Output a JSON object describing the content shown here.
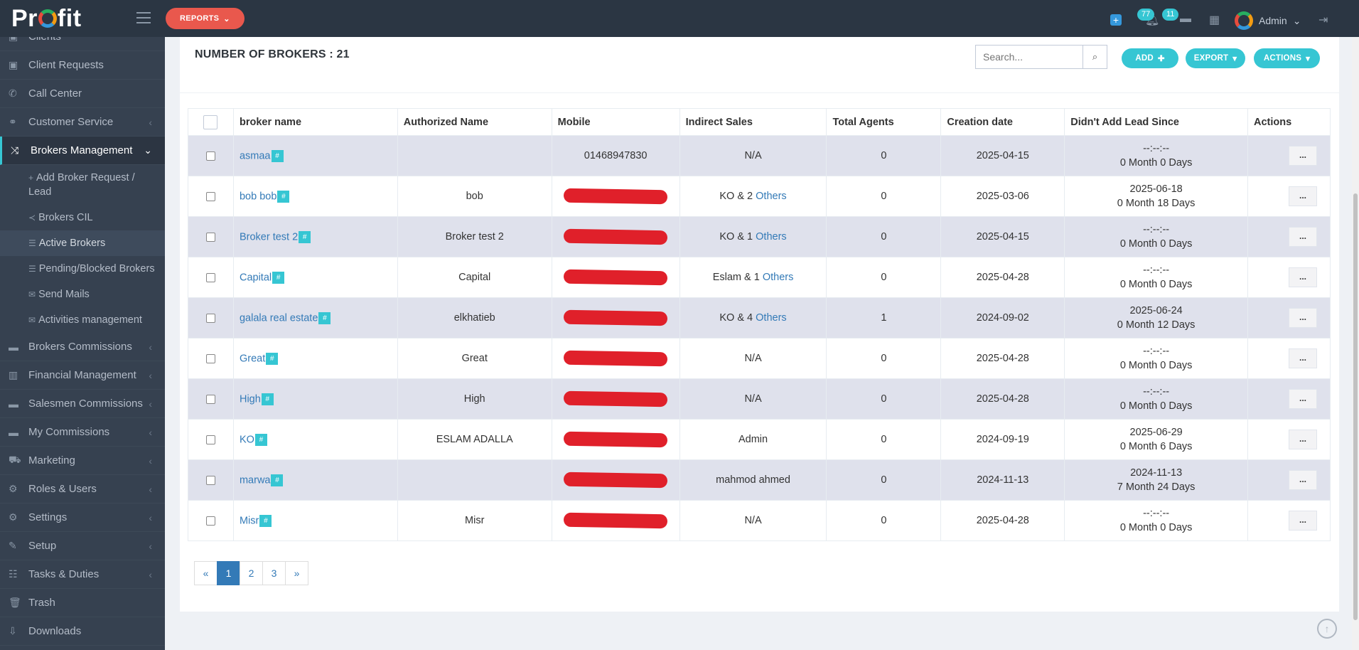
{
  "topbar": {
    "logo": "Profit",
    "reports_label": "REPORTS",
    "notifications_count": "77",
    "messages_count": "11",
    "user_name": "Admin"
  },
  "sidebar": {
    "items_top": [
      {
        "label": "Clients",
        "icon": "user-icon"
      },
      {
        "label": "Client Requests",
        "icon": "request-icon"
      },
      {
        "label": "Call Center",
        "icon": "phone-icon"
      },
      {
        "label": "Customer Service",
        "icon": "handshake-icon"
      },
      {
        "label": "Brokers Management",
        "icon": "shuffle-icon"
      }
    ],
    "sub_items": [
      {
        "label": "Add Broker Request / Lead",
        "icon": "plus-icon"
      },
      {
        "label": "Brokers CIL",
        "icon": "share-icon"
      },
      {
        "label": "Active Brokers",
        "icon": "list-icon"
      },
      {
        "label": "Pending/Blocked Brokers",
        "icon": "list-icon"
      },
      {
        "label": "Send Mails",
        "icon": "mail-icon"
      },
      {
        "label": "Activities management",
        "icon": "mail-icon"
      }
    ],
    "items_bottom": [
      {
        "label": "Brokers Commissions",
        "icon": "card-icon"
      },
      {
        "label": "Financial Management",
        "icon": "chart-icon"
      },
      {
        "label": "Salesmen Commissions",
        "icon": "card-icon"
      },
      {
        "label": "My Commissions",
        "icon": "card-icon"
      },
      {
        "label": "Marketing",
        "icon": "cart-icon"
      },
      {
        "label": "Roles & Users",
        "icon": "users-icon"
      },
      {
        "label": "Settings",
        "icon": "gear-icon"
      },
      {
        "label": "Setup",
        "icon": "wrench-icon"
      },
      {
        "label": "Tasks & Duties",
        "icon": "tasks-icon"
      },
      {
        "label": "Trash",
        "icon": "trash-icon"
      },
      {
        "label": "Downloads",
        "icon": "download-icon"
      }
    ]
  },
  "main": {
    "title": "NUMBER OF BROKERS : 21",
    "search_placeholder": "Search...",
    "add_label": "ADD",
    "export_label": "EXPORT",
    "actions_label": "ACTIONS",
    "columns": [
      "broker name",
      "Authorized Name",
      "Mobile",
      "Indirect Sales",
      "Total Agents",
      "Creation date",
      "Didn't Add Lead Since",
      "Actions"
    ],
    "rows": [
      {
        "name": "asmaa",
        "auth": "",
        "mobile": "01468947830",
        "redacted": false,
        "sales": "N/A",
        "sales_link": "",
        "agents": "0",
        "created": "2025-04-15",
        "since1": "--:--:--",
        "since2": "0 Month 0 Days"
      },
      {
        "name": "bob bob",
        "auth": "bob",
        "mobile": "",
        "redacted": true,
        "sales": "KO & 2",
        "sales_link": "Others",
        "agents": "0",
        "created": "2025-03-06",
        "since1": "2025-06-18",
        "since2": "0 Month 18 Days"
      },
      {
        "name": "Broker test 2",
        "auth": "Broker test 2",
        "mobile": "",
        "redacted": true,
        "sales": "KO & 1",
        "sales_link": "Others",
        "agents": "0",
        "created": "2025-04-15",
        "since1": "--:--:--",
        "since2": "0 Month 0 Days"
      },
      {
        "name": "Capital",
        "auth": "Capital",
        "mobile": "",
        "redacted": true,
        "sales": "Eslam & 1",
        "sales_link": "Others",
        "agents": "0",
        "created": "2025-04-28",
        "since1": "--:--:--",
        "since2": "0 Month 0 Days"
      },
      {
        "name": "galala real estate",
        "auth": "elkhatieb",
        "mobile": "",
        "redacted": true,
        "sales": "KO & 4",
        "sales_link": "Others",
        "agents": "1",
        "created": "2024-09-02",
        "since1": "2025-06-24",
        "since2": "0 Month 12 Days"
      },
      {
        "name": "Great",
        "auth": "Great",
        "mobile": "",
        "redacted": true,
        "sales": "N/A",
        "sales_link": "",
        "agents": "0",
        "created": "2025-04-28",
        "since1": "--:--:--",
        "since2": "0 Month 0 Days"
      },
      {
        "name": "High",
        "auth": "High",
        "mobile": "",
        "redacted": true,
        "sales": "N/A",
        "sales_link": "",
        "agents": "0",
        "created": "2025-04-28",
        "since1": "--:--:--",
        "since2": "0 Month 0 Days"
      },
      {
        "name": "KO",
        "auth": "ESLAM ADALLA",
        "mobile": "",
        "redacted": true,
        "sales": "Admin",
        "sales_link": "",
        "agents": "0",
        "created": "2024-09-19",
        "since1": "2025-06-29",
        "since2": "0 Month 6 Days"
      },
      {
        "name": "marwa",
        "auth": "",
        "mobile": "",
        "redacted": true,
        "sales": "mahmod ahmed",
        "sales_link": "",
        "agents": "0",
        "created": "2024-11-13",
        "since1": "2024-11-13",
        "since2": "7 Month 24 Days"
      },
      {
        "name": "Misr",
        "auth": "Misr",
        "mobile": "",
        "redacted": true,
        "sales": "N/A",
        "sales_link": "",
        "agents": "0",
        "created": "2025-04-28",
        "since1": "--:--:--",
        "since2": "0 Month 0 Days"
      }
    ],
    "row_action_label": "...",
    "hash_label": "#",
    "pagination": [
      "«",
      "1",
      "2",
      "3",
      "»"
    ],
    "current_page": "1"
  },
  "colors": {
    "topbar": "#2b3643",
    "sidebar": "#364150",
    "accent": "#36c6d3",
    "reports": "#e9584d",
    "link": "#337ab7"
  }
}
